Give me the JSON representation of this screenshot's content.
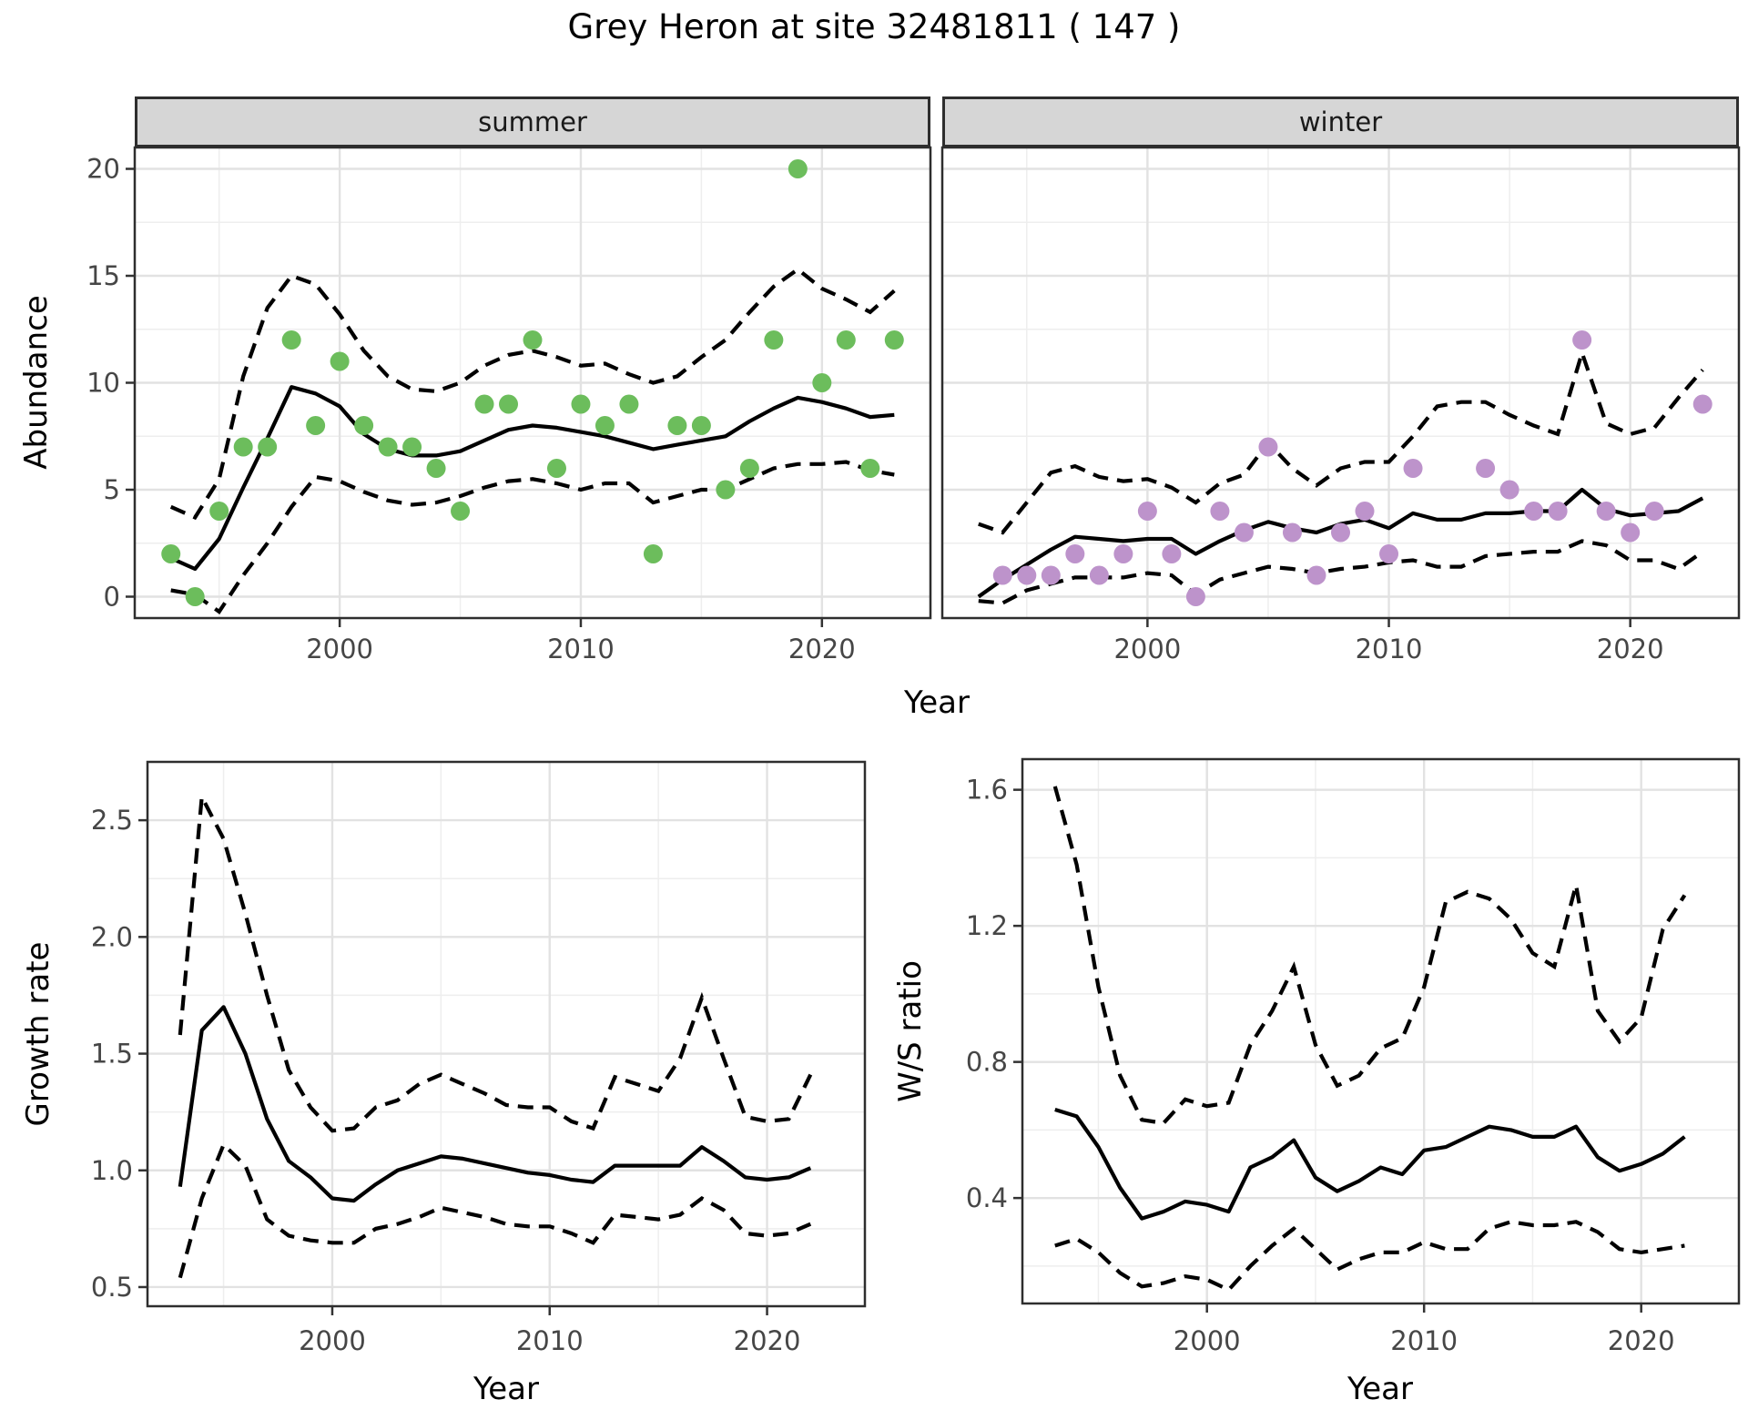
{
  "title": "Grey Heron at site 32481811 ( 147 )",
  "facets": {
    "summer_label": "summer",
    "winter_label": "winter"
  },
  "axis_titles": {
    "abundance": "Abundance",
    "year_top": "Year",
    "growth": "Growth rate",
    "year_growth": "Year",
    "ws": "W/S ratio",
    "year_ws": "Year"
  },
  "colors": {
    "summer_point": "#6cbd5c",
    "winter_point": "#bd93cb",
    "line": "#000000",
    "grid_major": "#e2e2e2",
    "grid_minor": "#eeeeee",
    "panel_border": "#2e2e2e",
    "tick_mark": "#333333",
    "axis_text": "#464646"
  },
  "chart_data": [
    {
      "id": "abundance-summer",
      "type": "line",
      "facet": "summer",
      "ylabel": "Abundance",
      "xlabel": "Year",
      "xlim": [
        1991.5,
        2024.5
      ],
      "ylim": [
        -1,
        21
      ],
      "x": [
        1993,
        1994,
        1995,
        1996,
        1997,
        1998,
        1999,
        2000,
        2001,
        2002,
        2003,
        2004,
        2005,
        2006,
        2007,
        2008,
        2009,
        2010,
        2011,
        2012,
        2013,
        2014,
        2015,
        2016,
        2017,
        2018,
        2019,
        2020,
        2021,
        2022,
        2023
      ],
      "series": {
        "points": [
          2,
          0,
          4,
          7,
          7,
          12,
          8,
          11,
          8,
          7,
          7,
          6,
          4,
          9,
          9,
          12,
          6,
          9,
          8,
          9,
          2,
          8,
          8,
          5,
          6,
          12,
          20,
          10,
          12,
          6,
          12
        ],
        "fit": [
          1.8,
          1.3,
          2.7,
          5.1,
          7.4,
          9.8,
          9.5,
          8.9,
          7.6,
          6.9,
          6.6,
          6.6,
          6.8,
          7.3,
          7.8,
          8.0,
          7.9,
          7.7,
          7.5,
          7.2,
          6.9,
          7.1,
          7.3,
          7.5,
          8.2,
          8.8,
          9.3,
          9.1,
          8.8,
          8.4,
          8.5
        ],
        "upper": [
          4.2,
          3.7,
          5.5,
          10.3,
          13.5,
          15.0,
          14.6,
          13.2,
          11.5,
          10.3,
          9.7,
          9.6,
          10.0,
          10.8,
          11.3,
          11.5,
          11.2,
          10.8,
          10.9,
          10.4,
          10.0,
          10.3,
          11.2,
          12.0,
          13.3,
          14.5,
          15.3,
          14.4,
          13.9,
          13.3,
          14.3
        ],
        "lower": [
          0.3,
          0.1,
          -0.7,
          1.0,
          2.5,
          4.2,
          5.6,
          5.4,
          4.9,
          4.5,
          4.3,
          4.4,
          4.7,
          5.1,
          5.4,
          5.5,
          5.3,
          5.0,
          5.3,
          5.3,
          4.4,
          4.7,
          5.0,
          5.0,
          5.5,
          6.0,
          6.2,
          6.2,
          6.3,
          5.9,
          5.7
        ]
      },
      "point_color": "summer_point",
      "x_ticks": [
        {
          "v": 2000,
          "label": "2000"
        },
        {
          "v": 2010,
          "label": "2010"
        },
        {
          "v": 2020,
          "label": "2020"
        }
      ],
      "y_ticks": [
        {
          "v": 0,
          "label": "0"
        },
        {
          "v": 5,
          "label": "5"
        },
        {
          "v": 10,
          "label": "10"
        },
        {
          "v": 15,
          "label": "15"
        },
        {
          "v": 20,
          "label": "20"
        }
      ],
      "x_minor": [
        1995,
        2005,
        2015
      ],
      "y_minor": [
        2.5,
        7.5,
        12.5,
        17.5
      ]
    },
    {
      "id": "abundance-winter",
      "type": "line",
      "facet": "winter",
      "ylabel": "Abundance",
      "xlabel": "Year",
      "xlim": [
        1991.5,
        2024.5
      ],
      "ylim": [
        -1,
        21
      ],
      "x": [
        1993,
        1994,
        1995,
        1996,
        1997,
        1998,
        1999,
        2000,
        2001,
        2002,
        2003,
        2004,
        2005,
        2006,
        2007,
        2008,
        2009,
        2010,
        2011,
        2012,
        2013,
        2014,
        2015,
        2016,
        2017,
        2018,
        2019,
        2020,
        2021,
        2022,
        2023
      ],
      "series": {
        "points": [
          null,
          1,
          1,
          1,
          2,
          1,
          2,
          4,
          2,
          0,
          4,
          3,
          7,
          3,
          1,
          3,
          4,
          2,
          6,
          null,
          null,
          6,
          5,
          4,
          4,
          12,
          4,
          3,
          4,
          null,
          9
        ],
        "fit": [
          0.0,
          0.8,
          1.5,
          2.2,
          2.8,
          2.7,
          2.6,
          2.7,
          2.7,
          2.0,
          2.6,
          3.1,
          3.5,
          3.2,
          3.0,
          3.4,
          3.6,
          3.2,
          3.9,
          3.6,
          3.6,
          3.9,
          3.9,
          4.0,
          4.0,
          5.0,
          4.1,
          3.8,
          3.9,
          4.0,
          4.6
        ],
        "upper": [
          3.4,
          3.0,
          4.4,
          5.8,
          6.1,
          5.6,
          5.4,
          5.5,
          5.1,
          4.4,
          5.3,
          5.7,
          7.2,
          6.0,
          5.2,
          6.0,
          6.3,
          6.3,
          7.5,
          8.9,
          9.1,
          9.1,
          8.5,
          8.0,
          7.6,
          11.4,
          8.1,
          7.6,
          7.9,
          9.3,
          10.6
        ],
        "lower": [
          -0.2,
          -0.3,
          0.3,
          0.6,
          0.9,
          0.9,
          0.9,
          1.1,
          1.0,
          0.1,
          0.8,
          1.1,
          1.4,
          1.3,
          1.1,
          1.3,
          1.4,
          1.6,
          1.7,
          1.4,
          1.4,
          1.9,
          2.0,
          2.1,
          2.1,
          2.6,
          2.4,
          1.7,
          1.7,
          1.3,
          2.1
        ]
      },
      "point_color": "winter_point",
      "x_ticks": [
        {
          "v": 2000,
          "label": "2000"
        },
        {
          "v": 2010,
          "label": "2010"
        },
        {
          "v": 2020,
          "label": "2020"
        }
      ],
      "y_ticks": [],
      "x_minor": [
        1995,
        2005,
        2015
      ],
      "y_minor": [
        2.5,
        7.5,
        12.5,
        17.5
      ]
    },
    {
      "id": "growth-rate",
      "type": "line",
      "ylabel": "Growth rate",
      "xlabel": "Year",
      "xlim": [
        1991.5,
        2024.5
      ],
      "ylim": [
        0.418,
        2.75
      ],
      "x": [
        1993,
        1994,
        1995,
        1996,
        1997,
        1998,
        1999,
        2000,
        2001,
        2002,
        2003,
        2004,
        2005,
        2006,
        2007,
        2008,
        2009,
        2010,
        2011,
        2012,
        2013,
        2014,
        2015,
        2016,
        2017,
        2018,
        2019,
        2020,
        2021,
        2022
      ],
      "series": {
        "fit": [
          0.93,
          1.6,
          1.7,
          1.5,
          1.22,
          1.04,
          0.97,
          0.88,
          0.87,
          0.94,
          1.0,
          1.03,
          1.06,
          1.05,
          1.03,
          1.01,
          0.99,
          0.98,
          0.96,
          0.95,
          1.02,
          1.02,
          1.02,
          1.02,
          1.1,
          1.04,
          0.97,
          0.96,
          0.97,
          1.01
        ],
        "upper": [
          1.58,
          2.6,
          2.42,
          2.1,
          1.75,
          1.43,
          1.27,
          1.17,
          1.18,
          1.27,
          1.3,
          1.37,
          1.41,
          1.37,
          1.33,
          1.28,
          1.27,
          1.27,
          1.21,
          1.18,
          1.4,
          1.37,
          1.34,
          1.48,
          1.74,
          1.48,
          1.23,
          1.21,
          1.22,
          1.41
        ],
        "lower": [
          0.54,
          0.88,
          1.11,
          1.02,
          0.79,
          0.72,
          0.7,
          0.69,
          0.69,
          0.75,
          0.77,
          0.8,
          0.84,
          0.82,
          0.8,
          0.77,
          0.76,
          0.76,
          0.73,
          0.69,
          0.81,
          0.8,
          0.79,
          0.81,
          0.88,
          0.83,
          0.73,
          0.72,
          0.73,
          0.77
        ]
      },
      "x_ticks": [
        {
          "v": 2000,
          "label": "2000"
        },
        {
          "v": 2010,
          "label": "2010"
        },
        {
          "v": 2020,
          "label": "2020"
        }
      ],
      "y_ticks": [
        {
          "v": 0.5,
          "label": "0.5"
        },
        {
          "v": 1.0,
          "label": "1.0"
        },
        {
          "v": 1.5,
          "label": "1.5"
        },
        {
          "v": 2.0,
          "label": "2.0"
        },
        {
          "v": 2.5,
          "label": "2.5"
        }
      ],
      "x_minor": [
        1995,
        2005,
        2015
      ],
      "y_minor": [
        0.75,
        1.25,
        1.75,
        2.25
      ]
    },
    {
      "id": "ws-ratio",
      "type": "line",
      "ylabel": "W/S ratio",
      "xlabel": "Year",
      "xlim": [
        1991.5,
        2024.5
      ],
      "ylim": [
        0.09,
        1.69
      ],
      "x": [
        1993,
        1994,
        1995,
        1996,
        1997,
        1998,
        1999,
        2000,
        2001,
        2002,
        2003,
        2004,
        2005,
        2006,
        2007,
        2008,
        2009,
        2010,
        2011,
        2012,
        2013,
        2014,
        2015,
        2016,
        2017,
        2018,
        2019,
        2020,
        2021,
        2022
      ],
      "series": {
        "fit": [
          0.66,
          0.64,
          0.55,
          0.43,
          0.34,
          0.36,
          0.39,
          0.38,
          0.36,
          0.49,
          0.52,
          0.57,
          0.46,
          0.42,
          0.45,
          0.49,
          0.47,
          0.54,
          0.55,
          0.58,
          0.61,
          0.6,
          0.58,
          0.58,
          0.61,
          0.52,
          0.48,
          0.5,
          0.53,
          0.58
        ],
        "upper": [
          1.61,
          1.38,
          1.02,
          0.76,
          0.63,
          0.62,
          0.69,
          0.67,
          0.68,
          0.85,
          0.95,
          1.08,
          0.85,
          0.73,
          0.76,
          0.84,
          0.87,
          1.02,
          1.27,
          1.3,
          1.28,
          1.22,
          1.12,
          1.08,
          1.32,
          0.95,
          0.86,
          0.93,
          1.19,
          1.29
        ],
        "lower": [
          0.26,
          0.28,
          0.24,
          0.18,
          0.14,
          0.15,
          0.17,
          0.16,
          0.13,
          0.2,
          0.26,
          0.31,
          0.25,
          0.19,
          0.22,
          0.24,
          0.24,
          0.27,
          0.25,
          0.25,
          0.31,
          0.33,
          0.32,
          0.32,
          0.33,
          0.3,
          0.25,
          0.24,
          0.25,
          0.26
        ]
      },
      "x_ticks": [
        {
          "v": 2000,
          "label": "2000"
        },
        {
          "v": 2010,
          "label": "2010"
        },
        {
          "v": 2020,
          "label": "2020"
        }
      ],
      "y_ticks": [
        {
          "v": 0.4,
          "label": "0.4"
        },
        {
          "v": 0.8,
          "label": "0.8"
        },
        {
          "v": 1.2,
          "label": "1.2"
        },
        {
          "v": 1.6,
          "label": "1.6"
        }
      ],
      "x_minor": [
        1995,
        2005,
        2015
      ],
      "y_minor": [
        0.2,
        0.6,
        1.0,
        1.4
      ]
    }
  ]
}
